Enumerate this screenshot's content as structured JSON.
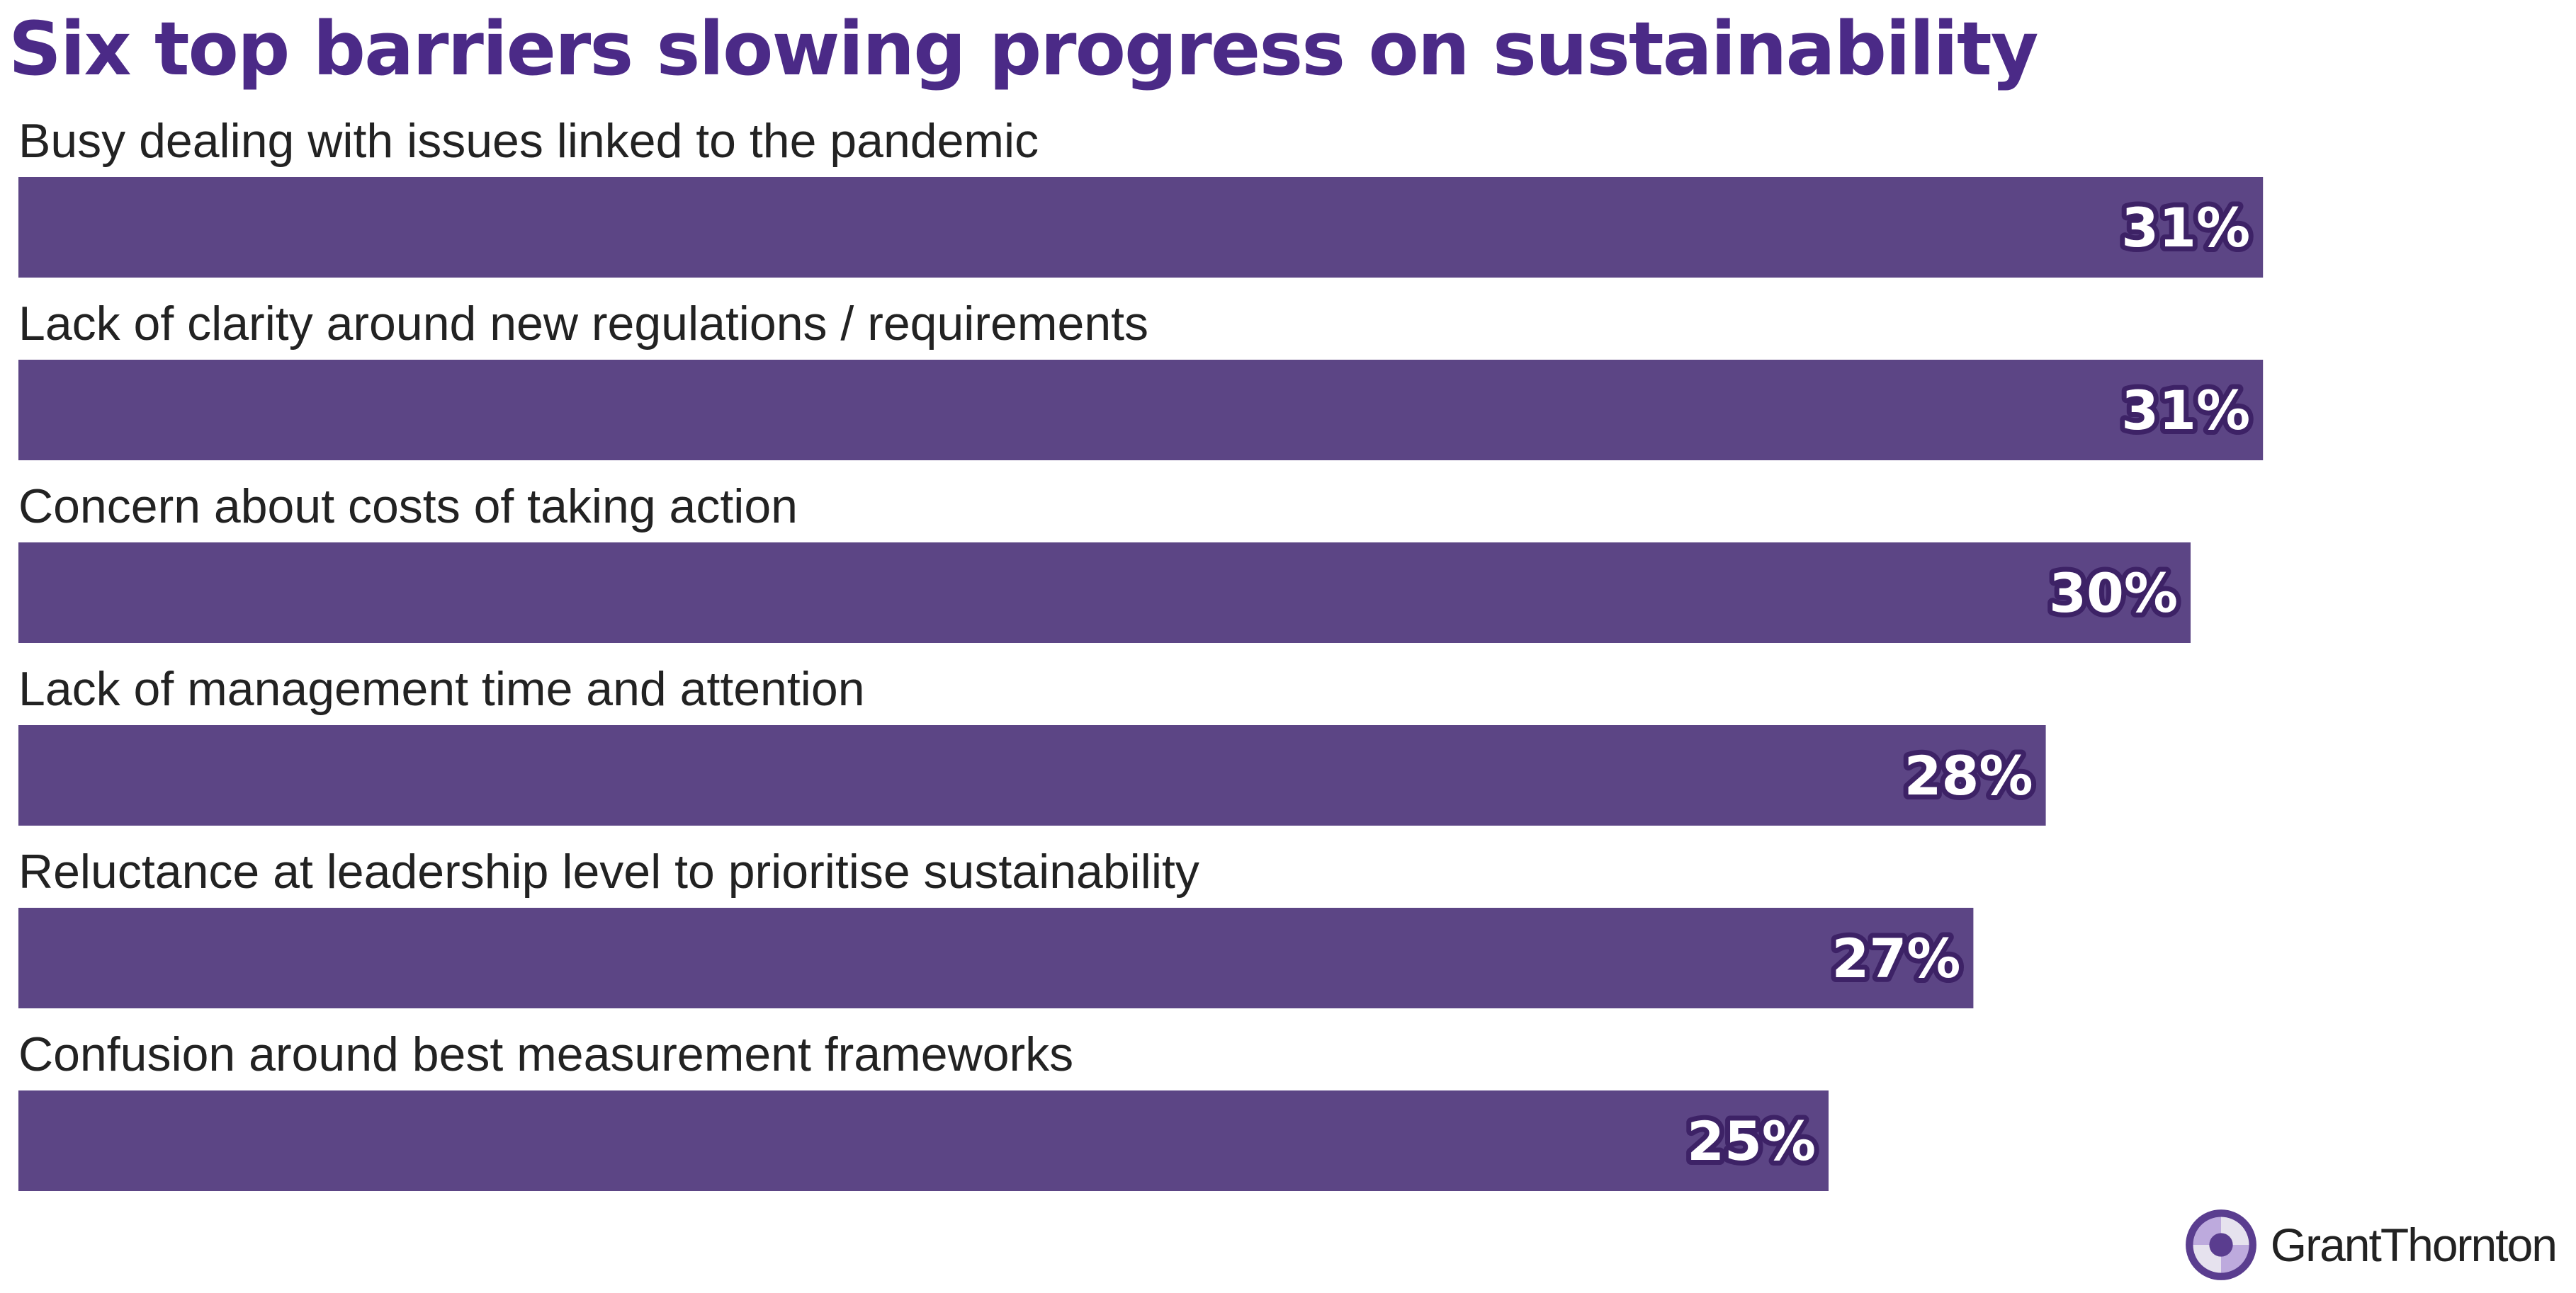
{
  "chart_data": {
    "type": "bar",
    "orientation": "horizontal",
    "title": "Six top barriers slowing progress on sustainability",
    "categories": [
      "Busy dealing with issues linked to the pandemic",
      "Lack of clarity around new regulations / requirements",
      "Concern about costs of taking action",
      "Lack of management time and attention",
      "Reluctance at leadership level to prioritise sustainability",
      "Confusion around best measurement frameworks"
    ],
    "values": [
      31,
      31,
      30,
      28,
      27,
      25
    ],
    "value_labels": [
      "31%",
      "31%",
      "30%",
      "28%",
      "27%",
      "25%"
    ],
    "unit": "%",
    "xlim": [
      0,
      33
    ],
    "grid": false,
    "legend": "none",
    "xlabel": "",
    "ylabel": ""
  },
  "colors": {
    "title": "#4b2a87",
    "bar": "#5c4585",
    "value_text": "#ffffff",
    "value_outline": "#3d2266",
    "label_text": "#222222"
  },
  "brand": {
    "name": "GrantThornton",
    "icon": "grant-thornton-logo-icon"
  }
}
